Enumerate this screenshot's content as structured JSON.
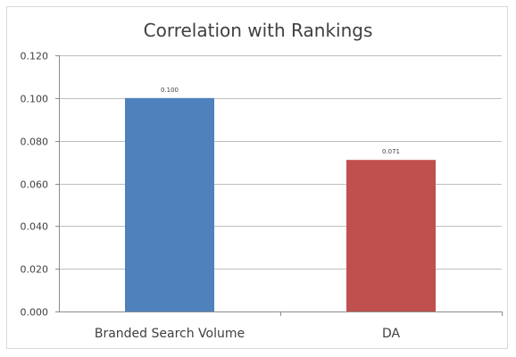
{
  "chart_data": {
    "type": "bar",
    "title": "Correlation with Rankings",
    "categories": [
      "Branded Search Volume",
      "DA"
    ],
    "values": [
      0.1,
      0.071
    ],
    "data_labels": [
      "0.100",
      "0.071"
    ],
    "colors": [
      "#4f81bd",
      "#c0504d"
    ],
    "ylim": [
      0,
      0.12
    ],
    "yticks": [
      0.0,
      0.02,
      0.04,
      0.06,
      0.08,
      0.1,
      0.12
    ],
    "ytick_labels": [
      "0.000",
      "0.020",
      "0.040",
      "0.060",
      "0.080",
      "0.100",
      "0.120"
    ],
    "xlabel": "",
    "ylabel": "",
    "grid": true,
    "legend": "none"
  }
}
